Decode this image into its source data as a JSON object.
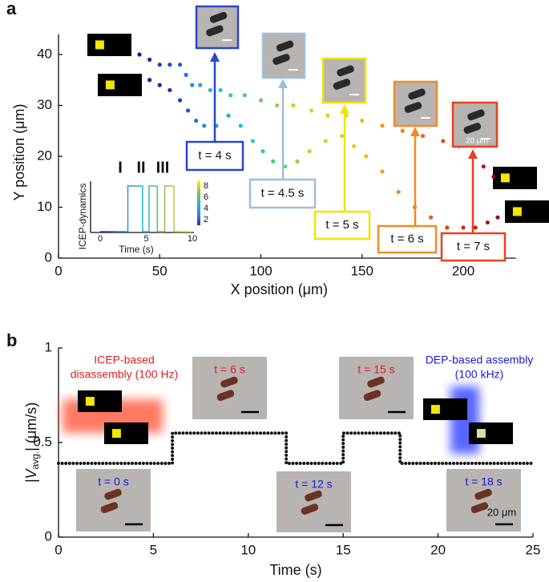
{
  "chart_data": [
    {
      "type": "scatter",
      "panel": "a",
      "xlabel": "X position (μm)",
      "ylabel": "Y position (μm)",
      "xlim": [
        0,
        226
      ],
      "ylim": [
        0,
        44
      ],
      "xticks": [
        0,
        50,
        100,
        150,
        200
      ],
      "yticks": [
        0,
        10,
        20,
        30,
        40
      ],
      "colormap": [
        "#1a1a8c",
        "#1f3fd6",
        "#1d8be6",
        "#19c8d8",
        "#4fd06a",
        "#c8dc2c",
        "#f2c41c",
        "#f07a1c",
        "#d8281c",
        "#9c0c0c"
      ],
      "series": [
        {
          "x": [
            40,
            45,
            50,
            55,
            60,
            63,
            66,
            70,
            75,
            80,
            85,
            92,
            100,
            108,
            116,
            125,
            133,
            142,
            150,
            160,
            170,
            180,
            190,
            198,
            205,
            210,
            215
          ],
          "values": [
            40,
            39,
            38,
            38,
            38,
            36,
            34,
            34,
            33,
            33,
            32,
            32,
            31,
            30,
            30,
            29,
            28,
            28,
            27,
            26,
            25,
            24,
            23,
            22,
            20,
            18,
            16
          ]
        },
        {
          "x": [
            45,
            50,
            55,
            60,
            64,
            68,
            72,
            78,
            84,
            90,
            96,
            101,
            106,
            112,
            118,
            124,
            132,
            140,
            146,
            152,
            160,
            168,
            176,
            184,
            192,
            200,
            206,
            212,
            217
          ],
          "values": [
            35,
            34,
            33,
            31,
            29,
            27,
            26,
            26,
            28,
            26,
            23,
            21,
            19,
            18,
            19,
            21,
            23,
            24,
            22,
            20,
            17,
            13,
            10,
            8,
            6,
            6,
            6,
            7,
            8
          ]
        }
      ],
      "annotations": [
        {
          "text": "t = 4 s",
          "color": "#2a47cc"
        },
        {
          "text": "t = 4.5 s",
          "color": "#9bbfdc"
        },
        {
          "text": "t = 5 s",
          "color": "#f0e400"
        },
        {
          "text": "t = 6 s",
          "color": "#f08a24"
        },
        {
          "text": "t = 7 s",
          "color": "#e8401c"
        }
      ],
      "scale_label": "20 μm",
      "inset": {
        "x": [
          0,
          3,
          3,
          4.6,
          4.6,
          5.3,
          5.3,
          6.2,
          6.2,
          7,
          7,
          8,
          8,
          10
        ],
        "values": [
          0,
          0,
          1,
          1,
          0,
          0,
          1,
          1,
          0,
          0,
          1,
          1,
          0,
          0
        ],
        "xticks": [
          0,
          5,
          10
        ],
        "xlabel": "Time (s)",
        "ylabel": "ICEP-dynamics",
        "colorbar_lim": [
          1,
          9
        ],
        "colorbar_ticks": [
          2,
          4,
          6,
          8
        ],
        "colorbar_colors": [
          "#3e26a8",
          "#2e87f0",
          "#1dbcc0",
          "#a5be3b",
          "#f9fb15"
        ],
        "labels": [
          "I",
          "II",
          "III"
        ]
      }
    },
    {
      "type": "line",
      "panel": "b",
      "xlabel": "Time (s)",
      "ylabel": "|V",
      "ylabel_sub": "avg.",
      "ylabel_unit": "| (μm/s)",
      "xlim": [
        0,
        25
      ],
      "ylim": [
        0,
        1
      ],
      "xticks": [
        0,
        5,
        10,
        15,
        20,
        25
      ],
      "yticks": [
        0,
        0.5,
        1
      ],
      "color": "#111111",
      "x": [
        0,
        6,
        6,
        12,
        12,
        15,
        15,
        18,
        18,
        25
      ],
      "values": [
        0.39,
        0.39,
        0.55,
        0.55,
        0.39,
        0.39,
        0.55,
        0.55,
        0.39,
        0.39
      ],
      "annotations": [
        {
          "text": [
            "ICEP-based",
            "disassembly (100 Hz)"
          ],
          "color": "#e02020"
        },
        {
          "text": [
            "DEP-based assembly",
            "(100 kHz)"
          ],
          "color": "#1a1acc"
        }
      ],
      "time_labels": [
        "t = 0 s",
        "t = 6 s",
        "t = 12 s",
        "t = 15 s",
        "t = 18 s"
      ],
      "time_label_colors": [
        "#1a1acc",
        "#e02020",
        "#1a1acc",
        "#e02020",
        "#1a1acc"
      ],
      "scale_label": "20 μm"
    }
  ]
}
